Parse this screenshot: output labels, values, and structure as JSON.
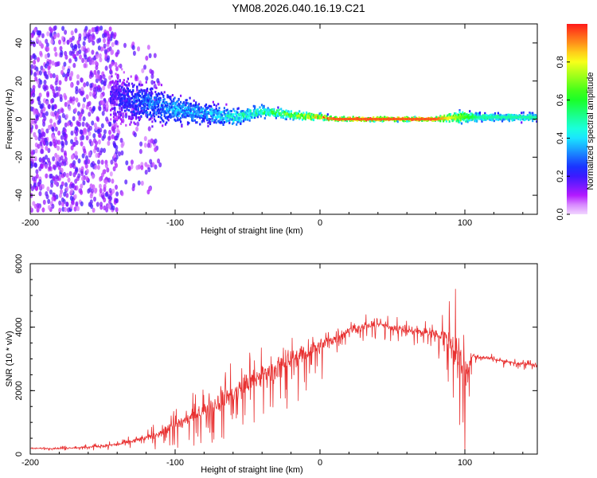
{
  "title": "YM08.2026.040.16.19.C21",
  "colors": {
    "series": "#e83030",
    "axis": "#000000"
  },
  "chart_data": [
    {
      "type": "heatmap",
      "title": "YM08.2026.040.16.19.C21",
      "xlabel": "Height of straight line (km)",
      "ylabel": "Frequency (Hz)",
      "xlim": [
        -200,
        150
      ],
      "ylim": [
        -50,
        50
      ],
      "xticks": [
        -200,
        -100,
        0,
        100
      ],
      "yticks": [
        -40,
        -20,
        0,
        20,
        40
      ],
      "colorbar": {
        "label": "Normalized spectral amplitude",
        "range": [
          0,
          1
        ],
        "ticks": [
          "0.0",
          "0.2",
          "0.4",
          "0.6",
          "0.8"
        ],
        "colormap": "rainbow"
      },
      "noise_region": {
        "x_from": -200,
        "x_to": -140,
        "freq_spread": 48
      },
      "ridge": [
        {
          "x": -145,
          "f": 12,
          "spread": 12,
          "amp": 0.18
        },
        {
          "x": -120,
          "f": 8,
          "spread": 9,
          "amp": 0.3
        },
        {
          "x": -100,
          "f": 5,
          "spread": 7,
          "amp": 0.35
        },
        {
          "x": -80,
          "f": 3,
          "spread": 5,
          "amp": 0.35
        },
        {
          "x": -60,
          "f": 1,
          "spread": 4,
          "amp": 0.45
        },
        {
          "x": -40,
          "f": 4,
          "spread": 3,
          "amp": 0.5
        },
        {
          "x": -20,
          "f": 2,
          "spread": 2,
          "amp": 0.65
        },
        {
          "x": 0,
          "f": 1,
          "spread": 1.5,
          "amp": 0.85
        },
        {
          "x": 10,
          "f": 0,
          "spread": 1,
          "amp": 0.95
        },
        {
          "x": 80,
          "f": 0,
          "spread": 1,
          "amp": 0.95
        },
        {
          "x": 95,
          "f": 1,
          "spread": 3,
          "amp": 0.7
        },
        {
          "x": 110,
          "f": 1,
          "spread": 2,
          "amp": 0.5
        },
        {
          "x": 150,
          "f": 1,
          "spread": 2,
          "amp": 0.5
        }
      ]
    },
    {
      "type": "line",
      "xlabel": "Height of straight line (km)",
      "ylabel": "SNR (10 * v/v)",
      "xlim": [
        -200,
        150
      ],
      "ylim": [
        0,
        6000
      ],
      "xticks": [
        -200,
        -100,
        0,
        100
      ],
      "yticks": [
        0,
        2000,
        4000,
        6000
      ],
      "series": [
        {
          "name": "SNR",
          "x": [
            -200,
            -180,
            -160,
            -140,
            -120,
            -100,
            -80,
            -60,
            -40,
            -20,
            0,
            20,
            40,
            60,
            80,
            90,
            95,
            100,
            105,
            110,
            120,
            130,
            140,
            150
          ],
          "baseline": [
            180,
            180,
            220,
            300,
            500,
            900,
            1400,
            1900,
            2500,
            3000,
            3400,
            3900,
            4100,
            3900,
            3800,
            3600,
            3300,
            2500,
            3100,
            3050,
            3000,
            2900,
            2850,
            2800
          ],
          "noise": [
            60,
            60,
            80,
            120,
            250,
            450,
            700,
            900,
            1100,
            1000,
            700,
            400,
            300,
            300,
            400,
            1200,
            1800,
            2000,
            200,
            150,
            150,
            120,
            120,
            120
          ]
        }
      ]
    }
  ]
}
